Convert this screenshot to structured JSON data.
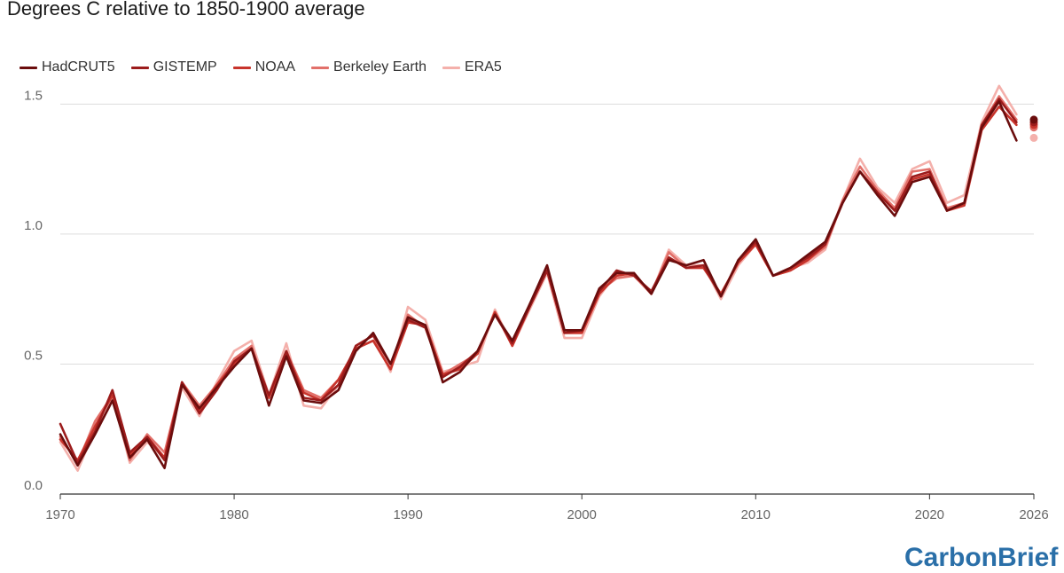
{
  "chart_data": {
    "type": "line",
    "title": "Degrees C relative to 1850-1900 average",
    "xlabel": "",
    "ylabel": "",
    "xlim": [
      1970,
      2026
    ],
    "ylim": [
      0,
      1.6
    ],
    "x_ticks": [
      "1970",
      "1980",
      "1990",
      "2000",
      "2010",
      "2020",
      "2026"
    ],
    "y_ticks": [
      "0.0",
      "0.5",
      "1.0",
      "1.5"
    ],
    "grid": "horizontal",
    "legend_position": "top-left",
    "x": [
      1970,
      1971,
      1972,
      1973,
      1974,
      1975,
      1976,
      1977,
      1978,
      1979,
      1980,
      1981,
      1982,
      1983,
      1984,
      1985,
      1986,
      1987,
      1988,
      1989,
      1990,
      1991,
      1992,
      1993,
      1994,
      1995,
      1996,
      1997,
      1998,
      1999,
      2000,
      2001,
      2002,
      2003,
      2004,
      2005,
      2006,
      2007,
      2008,
      2009,
      2010,
      2011,
      2012,
      2013,
      2014,
      2015,
      2016,
      2017,
      2018,
      2019,
      2020,
      2021,
      2022,
      2023,
      2024,
      2025
    ],
    "series": [
      {
        "name": "HadCRUT5",
        "color": "#6b0d0d",
        "values": [
          0.23,
          0.11,
          0.23,
          0.36,
          0.14,
          0.21,
          0.1,
          0.42,
          0.33,
          0.41,
          0.49,
          0.56,
          0.34,
          0.53,
          0.36,
          0.35,
          0.4,
          0.55,
          0.62,
          0.5,
          0.68,
          0.65,
          0.43,
          0.47,
          0.55,
          0.69,
          0.59,
          0.73,
          0.88,
          0.63,
          0.63,
          0.79,
          0.85,
          0.85,
          0.77,
          0.9,
          0.88,
          0.9,
          0.76,
          0.9,
          0.98,
          0.84,
          0.87,
          0.92,
          0.97,
          1.12,
          1.24,
          1.15,
          1.07,
          1.2,
          1.22,
          1.09,
          1.12,
          1.41,
          1.51,
          1.36
        ],
        "projection_2026": 1.44
      },
      {
        "name": "GISTEMP",
        "color": "#9c1c1c",
        "values": [
          0.27,
          0.12,
          0.24,
          0.4,
          0.16,
          0.22,
          0.13,
          0.43,
          0.31,
          0.4,
          0.51,
          0.56,
          0.38,
          0.55,
          0.37,
          0.36,
          0.42,
          0.57,
          0.61,
          0.5,
          0.67,
          0.64,
          0.45,
          0.49,
          0.55,
          0.69,
          0.58,
          0.72,
          0.86,
          0.62,
          0.63,
          0.78,
          0.86,
          0.84,
          0.78,
          0.91,
          0.87,
          0.88,
          0.76,
          0.9,
          0.97,
          0.84,
          0.87,
          0.91,
          0.96,
          1.12,
          1.24,
          1.16,
          1.09,
          1.22,
          1.24,
          1.09,
          1.12,
          1.42,
          1.52,
          1.43
        ],
        "projection_2026": 1.43
      },
      {
        "name": "NOAA",
        "color": "#c8342c",
        "values": [
          0.21,
          0.13,
          0.26,
          0.38,
          0.15,
          0.22,
          0.14,
          0.43,
          0.32,
          0.42,
          0.5,
          0.56,
          0.37,
          0.54,
          0.39,
          0.36,
          0.44,
          0.56,
          0.59,
          0.48,
          0.66,
          0.65,
          0.46,
          0.48,
          0.54,
          0.7,
          0.57,
          0.72,
          0.86,
          0.62,
          0.62,
          0.77,
          0.84,
          0.85,
          0.77,
          0.91,
          0.87,
          0.87,
          0.77,
          0.89,
          0.96,
          0.84,
          0.86,
          0.9,
          0.96,
          1.12,
          1.24,
          1.16,
          1.09,
          1.21,
          1.23,
          1.09,
          1.11,
          1.4,
          1.49,
          1.42
        ],
        "projection_2026": 1.42
      },
      {
        "name": "Berkeley Earth",
        "color": "#e2706a",
        "values": [
          0.22,
          0.12,
          0.28,
          0.38,
          0.13,
          0.23,
          0.16,
          0.43,
          0.34,
          0.42,
          0.52,
          0.57,
          0.37,
          0.55,
          0.4,
          0.37,
          0.44,
          0.56,
          0.59,
          0.48,
          0.69,
          0.64,
          0.46,
          0.5,
          0.54,
          0.7,
          0.57,
          0.73,
          0.86,
          0.62,
          0.62,
          0.78,
          0.83,
          0.84,
          0.77,
          0.93,
          0.87,
          0.87,
          0.77,
          0.89,
          0.96,
          0.84,
          0.86,
          0.9,
          0.95,
          1.13,
          1.26,
          1.17,
          1.1,
          1.24,
          1.25,
          1.1,
          1.12,
          1.42,
          1.53,
          1.44
        ],
        "projection_2026": 1.41
      },
      {
        "name": "ERA5",
        "color": "#f4b0ab",
        "values": [
          0.2,
          0.09,
          0.25,
          0.38,
          0.12,
          0.2,
          0.14,
          0.41,
          0.3,
          0.43,
          0.55,
          0.59,
          0.38,
          0.58,
          0.34,
          0.33,
          0.42,
          0.57,
          0.61,
          0.47,
          0.72,
          0.67,
          0.47,
          0.49,
          0.51,
          0.71,
          0.57,
          0.71,
          0.85,
          0.6,
          0.6,
          0.76,
          0.85,
          0.84,
          0.77,
          0.94,
          0.88,
          0.88,
          0.75,
          0.88,
          0.96,
          0.84,
          0.87,
          0.89,
          0.94,
          1.13,
          1.29,
          1.18,
          1.12,
          1.25,
          1.28,
          1.12,
          1.15,
          1.43,
          1.57,
          1.46
        ],
        "projection_2026": 1.37
      }
    ]
  },
  "watermark": "CarbonBrief"
}
